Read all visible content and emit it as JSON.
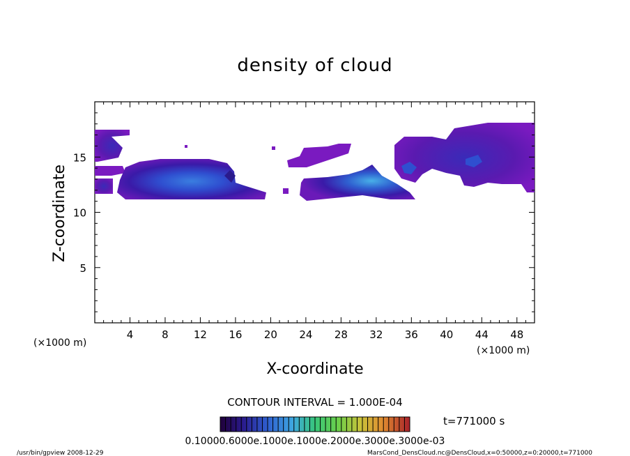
{
  "chart_data": {
    "type": "heatmap",
    "title": "density of cloud",
    "xlabel": "X-coordinate",
    "ylabel": "Z-coordinate",
    "x_unit": "(×1000 m)",
    "y_unit": "(×1000 m)",
    "xlim": [
      0,
      50
    ],
    "ylim": [
      0,
      20
    ],
    "x_ticks": [
      4,
      8,
      12,
      16,
      20,
      24,
      28,
      32,
      36,
      40,
      44,
      48
    ],
    "y_ticks": [
      5,
      10,
      15
    ],
    "contour_interval_text": "CONTOUR INTERVAL = 1.000E-04",
    "time_text": "t=771000  s",
    "colorbar_labels_text": "0.10000.6000e.1000e.1000e.2000e.3000e.3000e-03",
    "colorbar_colors": [
      "#20003a",
      "#2a1a8c",
      "#2f5fd0",
      "#3ea6e0",
      "#38c67a",
      "#6ad04a",
      "#c9c23a",
      "#e08a30",
      "#c9402a",
      "#a8202a"
    ],
    "cloud_regions": [
      {
        "name": "central-left cloud",
        "x": [
          4,
          16
        ],
        "z": [
          11.5,
          14.8
        ],
        "peak_color": "#2f5fd0"
      },
      {
        "name": "central-right cloud",
        "x": [
          23.5,
          36
        ],
        "z": [
          11.2,
          13.8
        ],
        "peak_color": "#3ea6e0"
      },
      {
        "name": "upper-right cloud",
        "x": [
          34,
          50
        ],
        "z": [
          12,
          18
        ],
        "peak_color": "#2a1a8c"
      },
      {
        "name": "left edge cloud",
        "x": [
          0,
          4
        ],
        "z": [
          12,
          17.5
        ],
        "peak_color": "#2a1a8c"
      }
    ]
  },
  "footer": {
    "left": "/usr/bin/gpview  2008-12-29",
    "right": "MarsCond_DensCloud.nc@DensCloud,x=0:50000,z=0:20000,t=771000"
  }
}
